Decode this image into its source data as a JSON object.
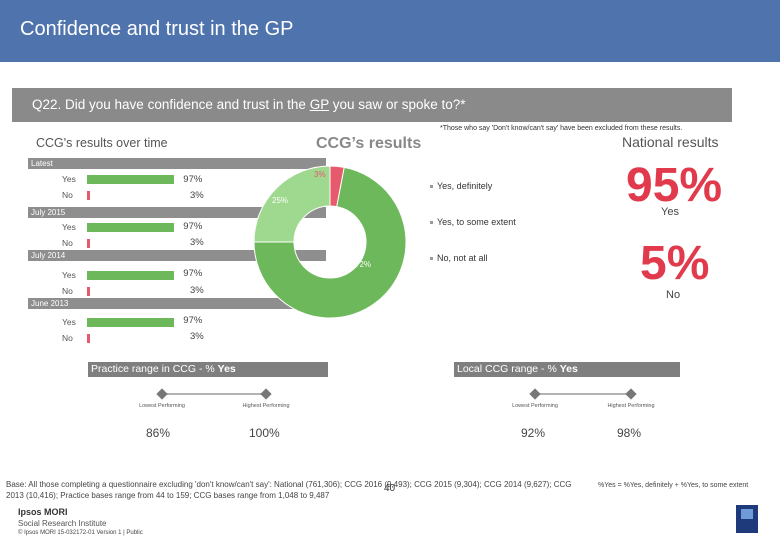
{
  "header": {
    "title": "Confidence and trust in the GP"
  },
  "question": {
    "prefix": "Q22. Did you have confidence and trust in the ",
    "underlined": "GP",
    "suffix": " you saw or spoke to?*"
  },
  "footnote_top": "*Those who say 'Don't know/can't say' have been excluded from these results.",
  "labels": {
    "ccg_over_time": "CCG's results over time",
    "ccg_results": "CCG’s results",
    "national_results": "National results"
  },
  "over_time": [
    {
      "period": "Latest",
      "yes": {
        "label": "Yes",
        "value": 97,
        "text": "97%"
      },
      "no": {
        "label": "No",
        "value": 3,
        "text": "3%"
      }
    },
    {
      "period": "July 2015",
      "yes": {
        "label": "Yes",
        "value": 97,
        "text": "97%"
      },
      "no": {
        "label": "No",
        "value": 3,
        "text": "3%"
      }
    },
    {
      "period": "July 2014",
      "yes": {
        "label": "Yes",
        "value": 97,
        "text": "97%"
      },
      "no": {
        "label": "No",
        "value": 3,
        "text": "3%"
      }
    },
    {
      "period": "June 2013",
      "yes": {
        "label": "Yes",
        "value": 97,
        "text": "97%"
      },
      "no": {
        "label": "No",
        "value": 3,
        "text": "3%"
      }
    }
  ],
  "chart_data": [
    {
      "type": "bar",
      "title": "CCG's results over time",
      "categories": [
        "Latest",
        "July 2015",
        "July 2014",
        "June 2013"
      ],
      "series": [
        {
          "name": "Yes",
          "values": [
            97,
            97,
            97,
            97
          ]
        },
        {
          "name": "No",
          "values": [
            3,
            3,
            3,
            3
          ]
        }
      ],
      "xlim": [
        0,
        100
      ]
    },
    {
      "type": "pie",
      "title": "CCG’s results",
      "categories": [
        "Yes, definitely",
        "Yes, to some extent",
        "No, not at all"
      ],
      "values": [
        72,
        25,
        3
      ],
      "value_labels": [
        "72%",
        "25%",
        "3%"
      ],
      "colors": [
        "#6cb85a",
        "#9fd88f",
        "#e65a6b"
      ]
    }
  ],
  "legend": [
    "Yes, definitely",
    "Yes, to some extent",
    "No, not at all"
  ],
  "national": {
    "yes_value": "95%",
    "yes_label": "Yes",
    "no_value": "5%",
    "no_label": "No"
  },
  "practice_range": {
    "title_prefix": "Practice range in CCG - % ",
    "title_bold": "Yes",
    "lowest_label": "Lowest Performing",
    "highest_label": "Highest Performing",
    "lowest_value": "86%",
    "highest_value": "100%"
  },
  "local_range": {
    "title_prefix": "Local CCG range - % ",
    "title_bold": "Yes",
    "lowest_label": "Lowest Performing",
    "highest_label": "Highest Performing",
    "lowest_value": "92%",
    "highest_value": "98%"
  },
  "base_text": "Base: All those completing a questionnaire excluding 'don't know/can't say': National (761,306); CCG 2016 (9,493); CCG 2015 (9,304); CCG 2014 (9,627); CCG 2013 (10,416); Practice bases range from 44 to 159; CCG bases range from 1,048 to 9,487",
  "yes_definition": "%Yes = %Yes, definitely + %Yes, to some extent",
  "footer": {
    "page": "40",
    "logo_line1": "Ipsos MORI",
    "logo_line2": "Social Research Institute",
    "copyright": "© Ipsos MORI    15-032172-01 Version 1 | Public"
  },
  "colors": {
    "header": "#4f73ad",
    "yes": "#6cb85a",
    "no": "#e65a6b",
    "accent_red": "#e23a4d"
  }
}
